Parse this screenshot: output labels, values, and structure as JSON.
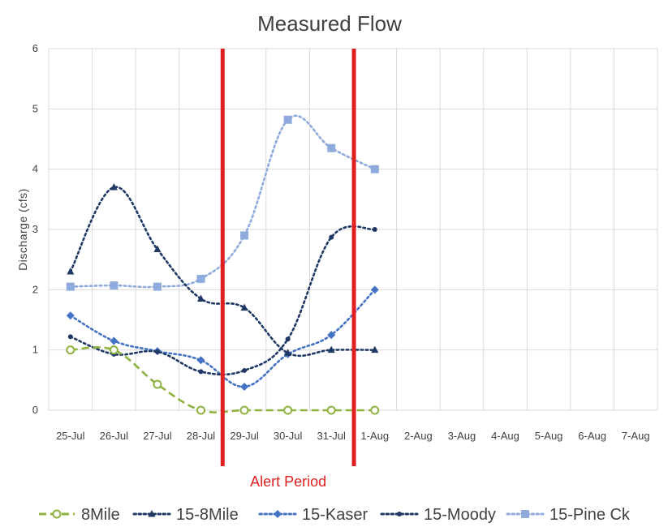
{
  "chart_data": {
    "type": "line",
    "title": "Measured Flow",
    "xlabel": "",
    "ylabel": "Discharge (cfs)",
    "ylim": [
      0,
      6
    ],
    "yticks": [
      "0",
      "1",
      "2",
      "3",
      "4",
      "5",
      "6"
    ],
    "categories": [
      "25-Jul",
      "26-Jul",
      "27-Jul",
      "28-Jul",
      "29-Jul",
      "30-Jul",
      "31-Jul",
      "1-Aug",
      "2-Aug",
      "3-Aug",
      "4-Aug",
      "5-Aug",
      "6-Aug",
      "7-Aug"
    ],
    "grid": true,
    "legend_position": "bottom",
    "series": [
      {
        "name": "8Mile",
        "color": "#8db33e",
        "dash": "dashed",
        "marker": "circle-open",
        "values": [
          1.0,
          1.0,
          0.43,
          0.0,
          0.0,
          0.0,
          0.0,
          0.0,
          null,
          null,
          null,
          null,
          null,
          null
        ]
      },
      {
        "name": "15-8Mile",
        "color": "#1f3864",
        "dash": "dotted",
        "marker": "triangle",
        "values": [
          2.3,
          3.7,
          2.67,
          1.85,
          1.7,
          0.95,
          1.0,
          1.0,
          null,
          null,
          null,
          null,
          null,
          null
        ]
      },
      {
        "name": "15-Kaser",
        "color": "#4472c4",
        "dash": "dotted",
        "marker": "diamond",
        "values": [
          1.57,
          1.15,
          0.98,
          0.83,
          0.39,
          0.93,
          1.25,
          2.0,
          null,
          null,
          null,
          null,
          null,
          null
        ]
      },
      {
        "name": "15-Moody",
        "color": "#1f3864",
        "dash": "dotted",
        "marker": "dot",
        "values": [
          1.22,
          0.93,
          0.97,
          0.64,
          0.66,
          1.18,
          2.87,
          3.0,
          null,
          null,
          null,
          null,
          null,
          null
        ]
      },
      {
        "name": "15-Pine Ck",
        "color": "#8faadc",
        "dash": "dotted",
        "marker": "square",
        "values": [
          2.05,
          2.07,
          2.05,
          2.18,
          2.9,
          4.82,
          4.35,
          4.0,
          null,
          null,
          null,
          null,
          null,
          null
        ]
      }
    ],
    "annotations": [
      {
        "text": "Alert Period",
        "color": "#e02020",
        "between": [
          "28-Jul",
          "1-Aug"
        ]
      }
    ]
  }
}
